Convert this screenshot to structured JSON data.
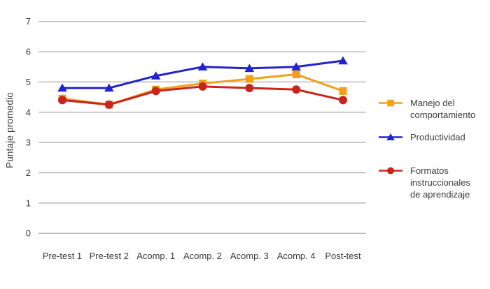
{
  "chart_data": {
    "type": "line",
    "title": "",
    "ylabel": "Puntaje promedio",
    "xlabel": "",
    "ylim": [
      0,
      7
    ],
    "ytick_step": 1,
    "grid": true,
    "legend_position": "right",
    "grid_color": "#a8a8a8",
    "text_color": "#3b3b3b",
    "categories": [
      "Pre-test 1",
      "Pre-test 2",
      "Acomp. 1",
      "Acomp. 2",
      "Acomp. 3",
      "Acomp. 4",
      "Post-test"
    ],
    "series": [
      {
        "name": "Manejo del comportamiento",
        "legend_lines": [
          "Manejo del",
          "comportamiento"
        ],
        "marker": "square",
        "color": "#f2a019",
        "values": [
          4.45,
          4.25,
          4.75,
          4.95,
          5.1,
          5.25,
          4.7
        ]
      },
      {
        "name": "Productividad",
        "legend_lines": [
          "Productividad"
        ],
        "marker": "triangle",
        "color": "#2323cd",
        "values": [
          4.8,
          4.8,
          5.2,
          5.5,
          5.45,
          5.5,
          5.7
        ]
      },
      {
        "name": "Formatos instruccionales de aprendizaje",
        "legend_lines": [
          "Formatos",
          "instruccionales",
          "de aprendizaje"
        ],
        "marker": "circle",
        "color": "#c8251c",
        "values": [
          4.4,
          4.25,
          4.7,
          4.85,
          4.8,
          4.75,
          4.4
        ]
      }
    ]
  }
}
